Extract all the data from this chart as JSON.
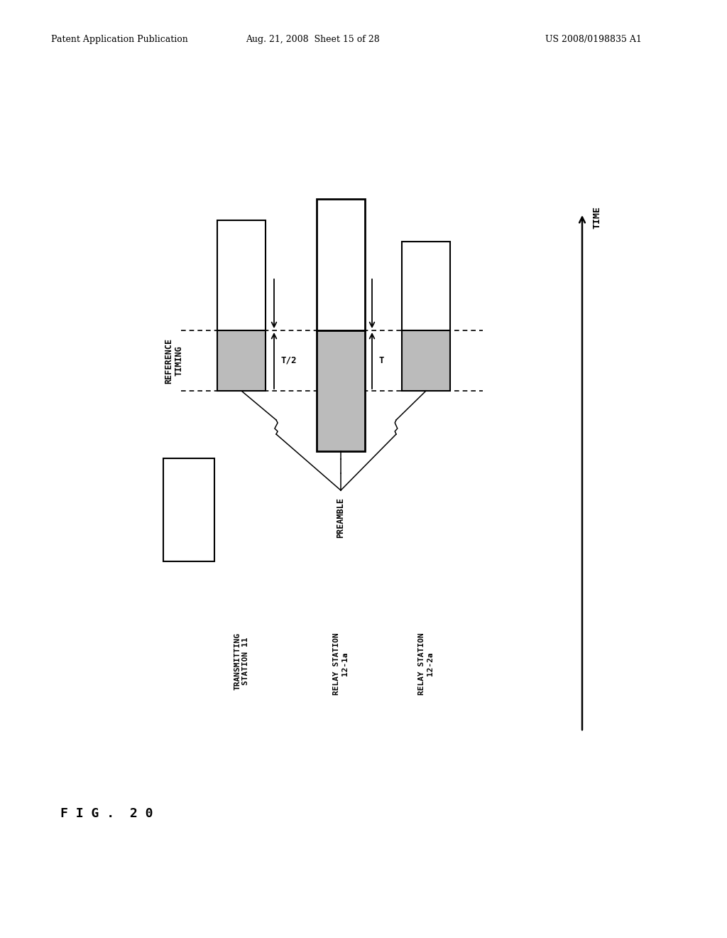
{
  "header_left": "Patent Application Publication",
  "header_mid": "Aug. 21, 2008  Sheet 15 of 28",
  "header_right": "US 2008/0198835 A1",
  "fig_label": "F I G .  2 0",
  "station_labels": [
    "TRANSMITTING\nSTATION 11",
    "RELAY STATION\n12-1a",
    "RELAY STATION\n12-2a"
  ],
  "time_label": "TIME",
  "ref_timing_label": "REFERENCE\nTIMING",
  "preamble_label": "PREAMBLE",
  "t_half_label": "T/2",
  "t_label": "T",
  "bg_color": "#ffffff"
}
